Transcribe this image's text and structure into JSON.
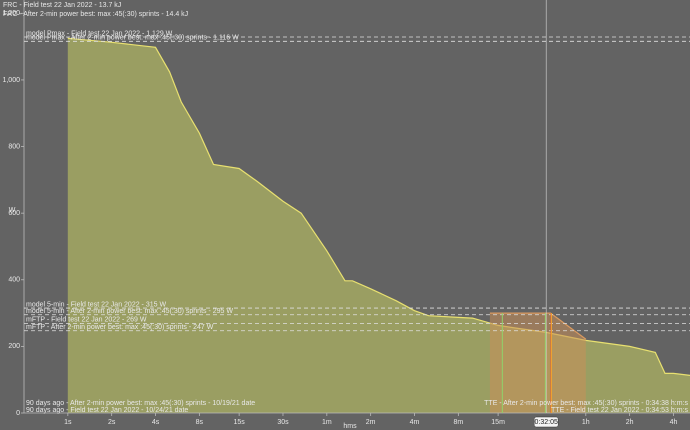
{
  "chart_data": {
    "type": "area",
    "x_label": "hms",
    "y_label": "W",
    "xscale": "log",
    "xlim": [
      0.5,
      18700
    ],
    "ylim": [
      0,
      1240
    ],
    "xticks": [
      {
        "value": 1,
        "label": "1s"
      },
      {
        "value": 2,
        "label": "2s"
      },
      {
        "value": 4,
        "label": "4s"
      },
      {
        "value": 8,
        "label": "8s"
      },
      {
        "value": 15,
        "label": "15s"
      },
      {
        "value": 30,
        "label": "30s"
      },
      {
        "value": 60,
        "label": "1m"
      },
      {
        "value": 120,
        "label": "2m"
      },
      {
        "value": 240,
        "label": "4m"
      },
      {
        "value": 480,
        "label": "8m"
      },
      {
        "value": 900,
        "label": "15m"
      },
      {
        "value": 3600,
        "label": "1h"
      },
      {
        "value": 7200,
        "label": "2h"
      },
      {
        "value": 14400,
        "label": "4h"
      }
    ],
    "yticks": [
      0,
      200,
      400,
      600,
      800,
      {
        "value": 1000,
        "label": "1,000"
      },
      {
        "value": 1200,
        "label": "1,200"
      }
    ],
    "series": [
      {
        "color": "#e8e070",
        "fill": "#9a9e62",
        "x": [
          1,
          2,
          4,
          5,
          6,
          8,
          10,
          15,
          20,
          30,
          40,
          60,
          80,
          90,
          120,
          180,
          240,
          300,
          480,
          600,
          900,
          1200,
          1925,
          3600,
          7200,
          10800,
          12600,
          14400,
          18700
        ],
        "values": [
          1125,
          1113,
          1098,
          1024,
          934,
          840,
          746,
          734,
          695,
          636,
          600,
          487,
          397,
          397,
          373,
          337,
          307,
          292,
          287,
          285,
          263,
          255,
          242,
          218,
          200,
          182,
          119,
          119,
          113
        ]
      },
      {
        "color": "#d99a60",
        "fill": "#c9905a",
        "x": [
          790,
          2060,
          3600
        ],
        "values": [
          300,
          300,
          222
        ]
      }
    ],
    "reference_lines": [
      {
        "value": 1129,
        "label": "model Pmax - Field test 22 Jan 2022 - 1,129 W"
      },
      {
        "value": 1116,
        "label": "model Pmax - After 2-min power best: max :45(:30) sprints - 1,116 W"
      },
      {
        "value": 315,
        "label": "model 5-min - Field test 22 Jan 2022 - 315 W"
      },
      {
        "value": 295,
        "label": "model 5-min - After 2-min power best: max :45(:30) sprints - 295 W"
      },
      {
        "value": 269,
        "label": "mFTP - Field test 22 Jan 2022 - 269 W"
      },
      {
        "value": 247,
        "label": "mFTP - After 2-min power best: max :45(:30) sprints - 247 W"
      }
    ],
    "vertical_lines": [
      {
        "x": 962,
        "color": "#8fd36a"
      },
      {
        "x": 1900,
        "color": "#8fd36a"
      },
      {
        "x": 2078,
        "color": "#e0602a"
      },
      {
        "x": 2093,
        "color": "#f0a030"
      }
    ],
    "cursor": {
      "x": 1925,
      "label": "0:32:05"
    },
    "top_notes": [
      "FRC - Field test 22 Jan 2022 - 13.7 kJ",
      "FRC - After 2-min power best: max :45(:30) sprints - 14.4 kJ"
    ],
    "bottom_left_notes": [
      "90 days ago - After 2-min power best: max :45(:30) sprints - 10/19/21 date",
      "90 days ago - Field test 22 Jan 2022 - 10/24/21 date"
    ],
    "bottom_right_notes": [
      "TTE - After 2-min power best: max :45(:30) sprints - 0:34:38 h:m:s",
      "TTE - Field test 22 Jan 2022 - 0:34:53 h:m:s"
    ]
  }
}
